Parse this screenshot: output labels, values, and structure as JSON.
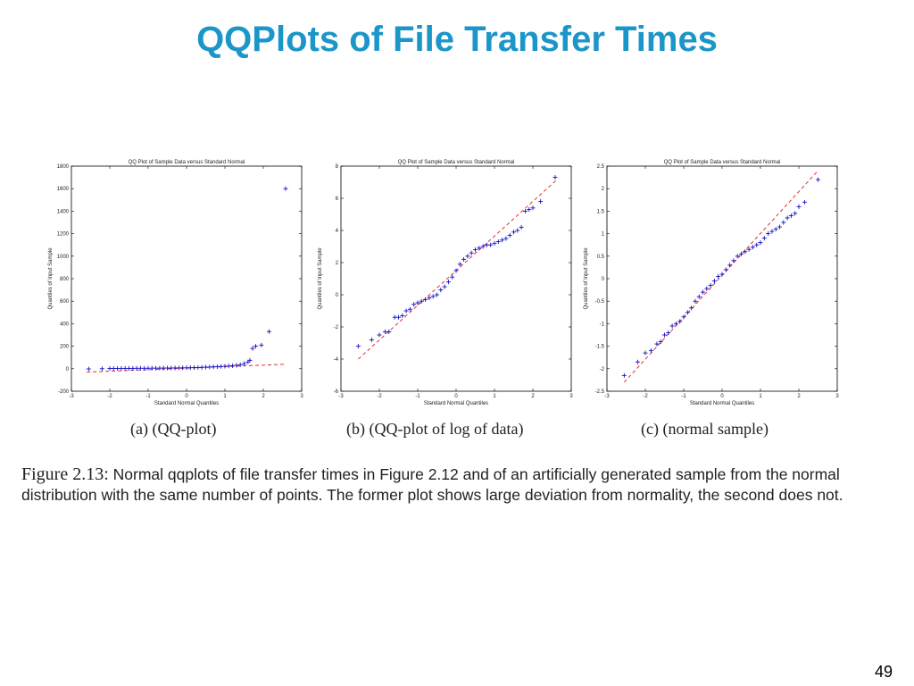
{
  "slide": {
    "title": "QQPlots of File Transfer Times",
    "page_number": "49"
  },
  "figure": {
    "label": "Figure 2.13:",
    "text": " Normal qqplots of file transfer times in Figure 2.12 and of an artificially generated sample from the normal distribution with the same number of points.  The former plot shows large deviation from normality, the second does not."
  },
  "colors": {
    "title": "#1b96c9",
    "points": "#1010c8",
    "reference_line": "#e03030",
    "axes": "#000000"
  },
  "chart_data": [
    {
      "type": "scatter",
      "caption": "(a)  (QQ-plot)",
      "title": "QQ Plot of Sample Data versus Standard Normal",
      "xlabel": "Standard Normal Quantiles",
      "ylabel": "Quantiles of Input Sample",
      "xlim": [
        -3,
        3
      ],
      "ylim": [
        -200,
        1800
      ],
      "xticks": [
        -3,
        -2,
        -1,
        0,
        1,
        2,
        3
      ],
      "yticks": [
        -200,
        0,
        200,
        400,
        600,
        800,
        1000,
        1200,
        1400,
        1600,
        1800
      ],
      "grid": false,
      "marker": "+",
      "reference_line": [
        [
          -2.6,
          -30
        ],
        [
          2.6,
          40
        ]
      ],
      "points": [
        [
          -2.55,
          -2
        ],
        [
          -2.2,
          0
        ],
        [
          -2.0,
          2
        ],
        [
          -1.9,
          2
        ],
        [
          -1.8,
          2
        ],
        [
          -1.7,
          3
        ],
        [
          -1.6,
          3
        ],
        [
          -1.5,
          3
        ],
        [
          -1.4,
          3
        ],
        [
          -1.3,
          4
        ],
        [
          -1.2,
          4
        ],
        [
          -1.1,
          4
        ],
        [
          -1.0,
          4
        ],
        [
          -0.9,
          5
        ],
        [
          -0.8,
          5
        ],
        [
          -0.7,
          5
        ],
        [
          -0.6,
          6
        ],
        [
          -0.5,
          6
        ],
        [
          -0.4,
          6
        ],
        [
          -0.3,
          7
        ],
        [
          -0.2,
          7
        ],
        [
          -0.1,
          8
        ],
        [
          0.0,
          8
        ],
        [
          0.1,
          9
        ],
        [
          0.2,
          10
        ],
        [
          0.3,
          11
        ],
        [
          0.4,
          12
        ],
        [
          0.5,
          14
        ],
        [
          0.6,
          15
        ],
        [
          0.7,
          17
        ],
        [
          0.8,
          18
        ],
        [
          0.9,
          20
        ],
        [
          1.0,
          22
        ],
        [
          1.1,
          24
        ],
        [
          1.2,
          27
        ],
        [
          1.3,
          30
        ],
        [
          1.4,
          35
        ],
        [
          1.5,
          45
        ],
        [
          1.6,
          60
        ],
        [
          1.65,
          75
        ],
        [
          1.72,
          180
        ],
        [
          1.8,
          200
        ],
        [
          1.95,
          210
        ],
        [
          2.15,
          330
        ],
        [
          2.58,
          1600
        ]
      ]
    },
    {
      "type": "scatter",
      "caption": "(b)  (QQ-plot of log of data)",
      "title": "QQ Plot of Sample Data versus Standard Normal",
      "xlabel": "Standard Normal Quantiles",
      "ylabel": "Quantiles of Input Sample",
      "xlim": [
        -3,
        3
      ],
      "ylim": [
        -6,
        8
      ],
      "xticks": [
        -3,
        -2,
        -1,
        0,
        1,
        2,
        3
      ],
      "yticks": [
        -6,
        -4,
        -2,
        0,
        2,
        4,
        6,
        8
      ],
      "grid": false,
      "marker": "+",
      "reference_line": [
        [
          -2.55,
          -4
        ],
        [
          2.6,
          7.1
        ]
      ],
      "points": [
        [
          -2.55,
          -3.2
        ],
        [
          -2.2,
          -2.8
        ],
        [
          -2.0,
          -2.5
        ],
        [
          -1.85,
          -2.3
        ],
        [
          -1.75,
          -2.3
        ],
        [
          -1.6,
          -1.4
        ],
        [
          -1.5,
          -1.4
        ],
        [
          -1.4,
          -1.3
        ],
        [
          -1.3,
          -1.0
        ],
        [
          -1.2,
          -0.9
        ],
        [
          -1.1,
          -0.6
        ],
        [
          -1.0,
          -0.5
        ],
        [
          -0.9,
          -0.4
        ],
        [
          -0.8,
          -0.3
        ],
        [
          -0.7,
          -0.2
        ],
        [
          -0.6,
          -0.1
        ],
        [
          -0.5,
          0.0
        ],
        [
          -0.4,
          0.3
        ],
        [
          -0.3,
          0.5
        ],
        [
          -0.2,
          0.8
        ],
        [
          -0.1,
          1.1
        ],
        [
          0.0,
          1.5
        ],
        [
          0.1,
          1.9
        ],
        [
          0.2,
          2.2
        ],
        [
          0.3,
          2.4
        ],
        [
          0.4,
          2.6
        ],
        [
          0.5,
          2.8
        ],
        [
          0.6,
          2.9
        ],
        [
          0.7,
          3.0
        ],
        [
          0.8,
          3.1
        ],
        [
          0.9,
          3.1
        ],
        [
          1.0,
          3.2
        ],
        [
          1.1,
          3.3
        ],
        [
          1.2,
          3.4
        ],
        [
          1.3,
          3.5
        ],
        [
          1.4,
          3.7
        ],
        [
          1.5,
          3.9
        ],
        [
          1.6,
          4.0
        ],
        [
          1.7,
          4.2
        ],
        [
          1.8,
          5.2
        ],
        [
          1.9,
          5.3
        ],
        [
          2.0,
          5.4
        ],
        [
          2.2,
          5.8
        ],
        [
          2.58,
          7.3
        ]
      ]
    },
    {
      "type": "scatter",
      "caption": "(c)  (normal sample)",
      "title": "QQ Plot of Sample Data versus Standard Normal",
      "xlabel": "Standard Normal Quantiles",
      "ylabel": "Quantiles of Input Sample",
      "xlim": [
        -3,
        3
      ],
      "ylim": [
        -2.5,
        2.5
      ],
      "xticks": [
        -3,
        -2,
        -1,
        0,
        1,
        2,
        3
      ],
      "yticks": [
        -2.5,
        -2,
        -1.5,
        -1,
        -0.5,
        0,
        0.5,
        1,
        1.5,
        2,
        2.5
      ],
      "grid": false,
      "marker": "+",
      "reference_line": [
        [
          -2.55,
          -2.3
        ],
        [
          2.5,
          2.4
        ]
      ],
      "points": [
        [
          -2.55,
          -2.15
        ],
        [
          -2.2,
          -1.85
        ],
        [
          -2.0,
          -1.65
        ],
        [
          -1.85,
          -1.6
        ],
        [
          -1.7,
          -1.45
        ],
        [
          -1.6,
          -1.4
        ],
        [
          -1.5,
          -1.25
        ],
        [
          -1.4,
          -1.2
        ],
        [
          -1.3,
          -1.05
        ],
        [
          -1.2,
          -1.0
        ],
        [
          -1.1,
          -0.95
        ],
        [
          -1.0,
          -0.85
        ],
        [
          -0.9,
          -0.75
        ],
        [
          -0.8,
          -0.65
        ],
        [
          -0.7,
          -0.5
        ],
        [
          -0.6,
          -0.4
        ],
        [
          -0.5,
          -0.3
        ],
        [
          -0.4,
          -0.22
        ],
        [
          -0.3,
          -0.15
        ],
        [
          -0.2,
          -0.05
        ],
        [
          -0.1,
          0.05
        ],
        [
          0.0,
          0.1
        ],
        [
          0.1,
          0.2
        ],
        [
          0.2,
          0.3
        ],
        [
          0.3,
          0.4
        ],
        [
          0.4,
          0.5
        ],
        [
          0.5,
          0.55
        ],
        [
          0.6,
          0.6
        ],
        [
          0.7,
          0.65
        ],
        [
          0.8,
          0.7
        ],
        [
          0.9,
          0.75
        ],
        [
          1.0,
          0.8
        ],
        [
          1.1,
          0.9
        ],
        [
          1.2,
          1.0
        ],
        [
          1.3,
          1.05
        ],
        [
          1.4,
          1.1
        ],
        [
          1.5,
          1.15
        ],
        [
          1.6,
          1.25
        ],
        [
          1.7,
          1.35
        ],
        [
          1.8,
          1.4
        ],
        [
          1.9,
          1.45
        ],
        [
          2.0,
          1.6
        ],
        [
          2.15,
          1.7
        ],
        [
          2.5,
          2.2
        ]
      ]
    }
  ]
}
